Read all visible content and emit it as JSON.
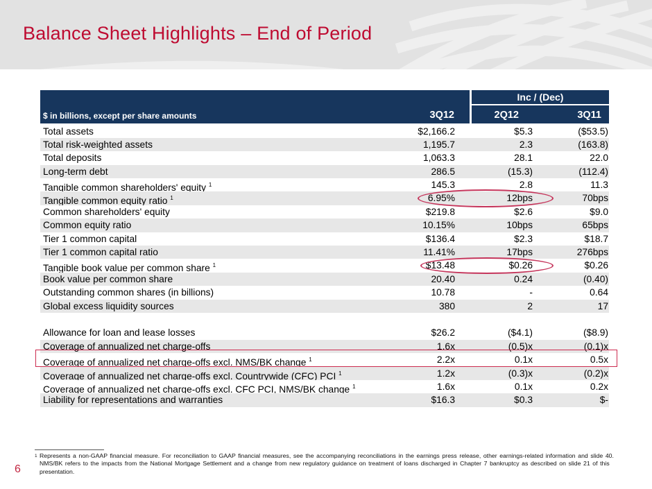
{
  "slide": {
    "title": "Balance Sheet Highlights – End of Period",
    "page_number": "6"
  },
  "table": {
    "corner_label": "$ in billions, except per share amounts",
    "group_header": "Inc / (Dec)",
    "columns": [
      "3Q12",
      "2Q12",
      "3Q11"
    ],
    "balance_rows": [
      {
        "label": "Total assets",
        "sup": "",
        "values": [
          "$2,166.2",
          "$5.3",
          "($53.5)"
        ]
      },
      {
        "label": "Total risk-weighted assets",
        "sup": "",
        "values": [
          "1,195.7",
          "2.3",
          "(163.8)"
        ]
      },
      {
        "label": "Total deposits",
        "sup": "",
        "values": [
          "1,063.3",
          "28.1",
          "22.0"
        ]
      },
      {
        "label": "Long-term debt",
        "sup": "",
        "values": [
          "286.5",
          "(15.3)",
          "(112.4)"
        ]
      },
      {
        "label": "Tangible common shareholders' equity",
        "sup": "1",
        "values": [
          "145.3",
          "2.8",
          "11.3"
        ]
      },
      {
        "label": "Tangible common equity ratio",
        "sup": "1",
        "values": [
          "6.95%",
          "12bps",
          "70bps"
        ]
      },
      {
        "label": "Common shareholders' equity",
        "sup": "",
        "values": [
          "$219.8",
          "$2.6",
          "$9.0"
        ]
      },
      {
        "label": "Common equity ratio",
        "sup": "",
        "values": [
          "10.15%",
          "10bps",
          "65bps"
        ]
      },
      {
        "label": "Tier 1 common capital",
        "sup": "",
        "values": [
          "$136.4",
          "$2.3",
          "$18.7"
        ]
      },
      {
        "label": "Tier 1 common capital ratio",
        "sup": "",
        "values": [
          "11.41%",
          "17bps",
          "276bps"
        ]
      },
      {
        "label": "Tangible book value per common share",
        "sup": "1",
        "values": [
          "$13.48",
          "$0.26",
          "$0.26"
        ]
      },
      {
        "label": "Book value per common share",
        "sup": "",
        "values": [
          "20.40",
          "0.24",
          "(0.40)"
        ]
      },
      {
        "label": "Outstanding common shares (in billions)",
        "sup": "",
        "values": [
          "10.78",
          "-",
          "0.64"
        ]
      },
      {
        "label": "Global excess liquidity sources",
        "sup": "",
        "values": [
          "380",
          "2",
          "17"
        ]
      }
    ],
    "credit_rows": [
      {
        "label": "Allowance for loan and lease losses",
        "sup": "",
        "values": [
          "$26.2",
          "($4.1)",
          "($8.9)"
        ]
      },
      {
        "label": "Coverage of annualized net charge-offs",
        "sup": "",
        "values": [
          "1.6x",
          "(0.5)x",
          "(0.1)x"
        ]
      },
      {
        "label": "Coverage of annualized net charge-offs excl. NMS/BK change",
        "sup": "1",
        "values": [
          "2.2x",
          "0.1x",
          "0.5x"
        ]
      },
      {
        "label": "Coverage of annualized net charge-offs excl. Countrywide (CFC) PCI",
        "sup": "1",
        "values": [
          "1.2x",
          "(0.3)x",
          "(0.2)x"
        ]
      },
      {
        "label": "Coverage of annualized net charge-offs excl. CFC PCI, NMS/BK change",
        "sup": "1",
        "values": [
          "1.6x",
          "0.1x",
          "0.2x"
        ]
      },
      {
        "label": "Liability for representations and warranties",
        "sup": "",
        "values": [
          "$16.3",
          "$0.3",
          "$-"
        ]
      }
    ]
  },
  "annotations": {
    "ellipse_1_around": "6.95% and 12bps",
    "ellipse_2_around": "$13.48 and $0.26",
    "box_around_row": "Coverage of annualized net charge-offs excl. NMS/BK change"
  },
  "footnote": {
    "marker": "1",
    "lines": [
      "Represents a non-GAAP financial measure. For reconciliation to GAAP financial measures, see the accompanying reconciliations in the earnings press release, other earnings-related information and slide 40.",
      "NMS/BK refers to the impacts from the National Mortgage Settlement and a change from new regulatory guidance on treatment of loans discharged in Chapter 7 bankruptcy as described on slide 21 of this",
      "presentation."
    ]
  },
  "colors": {
    "accent_red": "#BE0B31",
    "annotation_red": "#C5355B",
    "header_navy": "#17365D",
    "row_shade": "#E7E7E7",
    "band_gray": "#E2E2E2"
  }
}
